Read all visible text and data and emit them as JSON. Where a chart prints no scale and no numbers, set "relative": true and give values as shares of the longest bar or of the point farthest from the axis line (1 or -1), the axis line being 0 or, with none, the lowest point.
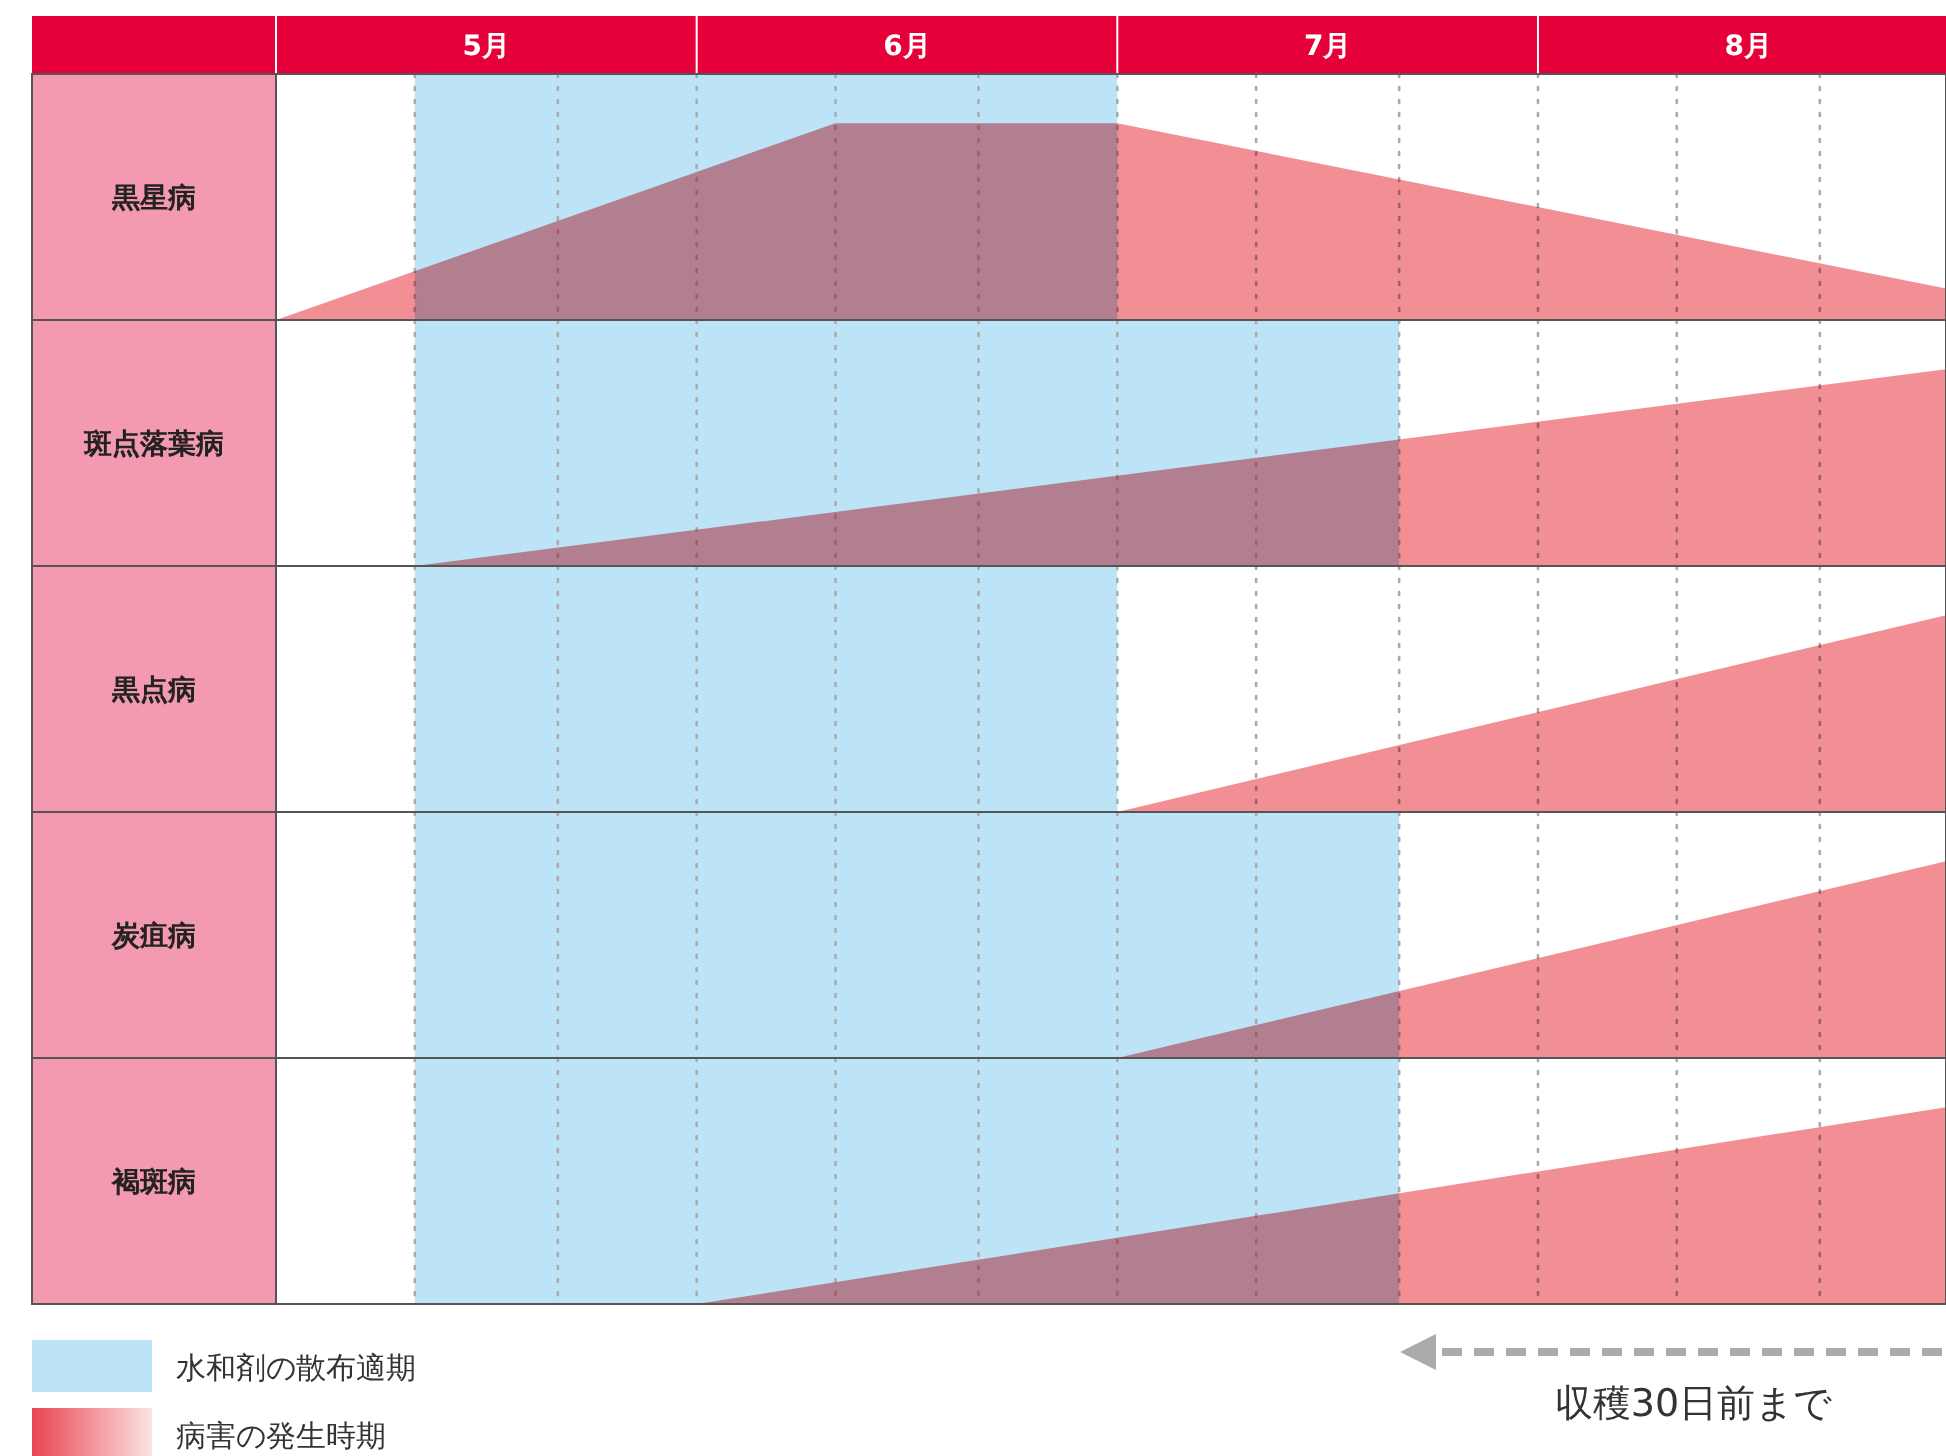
{
  "chart_data": [
    {
      "type": "area",
      "ylabel": "黒星病",
      "relative": true,
      "tick_labels": "x",
      "x": [
        5,
        6.33,
        7,
        8.97
      ],
      "xlim": [
        5,
        8.97
      ],
      "xticks": [
        {
          "value": 5.5,
          "label": "5月"
        },
        {
          "value": 6.5,
          "label": "6月"
        },
        {
          "value": 7.5,
          "label": "7月"
        },
        {
          "value": 8.5,
          "label": "8月"
        }
      ],
      "series": [
        {
          "color": "#e8454f",
          "values": [
            0,
            1,
            1,
            0.16
          ]
        }
      ],
      "bands": [
        {
          "axis": "x",
          "from": 5.33,
          "to": 7,
          "color": "#bde3f7"
        }
      ],
      "ref_lines": [
        {
          "axis": "x",
          "value": 5.33,
          "line_style": "dotted",
          "color": "#aaaaaa"
        },
        {
          "axis": "x",
          "value": 5.67,
          "line_style": "dotted",
          "color": "#aaaaaa"
        },
        {
          "axis": "x",
          "value": 6,
          "line_style": "dotted",
          "color": "#aaaaaa"
        },
        {
          "axis": "x",
          "value": 6.33,
          "line_style": "dotted",
          "color": "#aaaaaa"
        },
        {
          "axis": "x",
          "value": 6.67,
          "line_style": "dotted",
          "color": "#aaaaaa"
        },
        {
          "axis": "x",
          "value": 7,
          "line_style": "dotted",
          "color": "#aaaaaa"
        },
        {
          "axis": "x",
          "value": 7.33,
          "line_style": "dotted",
          "color": "#aaaaaa"
        },
        {
          "axis": "x",
          "value": 7.67,
          "line_style": "dotted",
          "color": "#aaaaaa"
        },
        {
          "axis": "x",
          "value": 8,
          "line_style": "dotted",
          "color": "#aaaaaa"
        },
        {
          "axis": "x",
          "value": 8.33,
          "line_style": "dotted",
          "color": "#aaaaaa"
        },
        {
          "axis": "x",
          "value": 8.67,
          "line_style": "dotted",
          "color": "#aaaaaa"
        }
      ]
    },
    {
      "type": "area",
      "ylabel": "斑点落葉病",
      "relative": true,
      "tick_labels": false,
      "x": [
        5.33,
        8.97
      ],
      "xlim": [
        5,
        8.97
      ],
      "series": [
        {
          "color": "#e8454f",
          "values": [
            0,
            1
          ]
        }
      ],
      "bands": [
        {
          "axis": "x",
          "from": 5.33,
          "to": 7.67,
          "color": "#bde3f7"
        }
      ],
      "ref_lines": [
        {
          "axis": "x",
          "value": 5.33,
          "line_style": "dotted",
          "color": "#aaaaaa"
        },
        {
          "axis": "x",
          "value": 5.67,
          "line_style": "dotted",
          "color": "#aaaaaa"
        },
        {
          "axis": "x",
          "value": 6,
          "line_style": "dotted",
          "color": "#aaaaaa"
        },
        {
          "axis": "x",
          "value": 6.33,
          "line_style": "dotted",
          "color": "#aaaaaa"
        },
        {
          "axis": "x",
          "value": 6.67,
          "line_style": "dotted",
          "color": "#aaaaaa"
        },
        {
          "axis": "x",
          "value": 7,
          "line_style": "dotted",
          "color": "#aaaaaa"
        },
        {
          "axis": "x",
          "value": 7.33,
          "line_style": "dotted",
          "color": "#aaaaaa"
        },
        {
          "axis": "x",
          "value": 7.67,
          "line_style": "dotted",
          "color": "#aaaaaa"
        },
        {
          "axis": "x",
          "value": 8,
          "line_style": "dotted",
          "color": "#aaaaaa"
        },
        {
          "axis": "x",
          "value": 8.33,
          "line_style": "dotted",
          "color": "#aaaaaa"
        },
        {
          "axis": "x",
          "value": 8.67,
          "line_style": "dotted",
          "color": "#aaaaaa"
        }
      ]
    },
    {
      "type": "area",
      "ylabel": "黒点病",
      "relative": true,
      "tick_labels": false,
      "x": [
        7,
        8.97
      ],
      "xlim": [
        5,
        8.97
      ],
      "series": [
        {
          "color": "#e8454f",
          "values": [
            0,
            1
          ]
        }
      ],
      "bands": [
        {
          "axis": "x",
          "from": 5.33,
          "to": 7,
          "color": "#bde3f7"
        }
      ],
      "ref_lines": [
        {
          "axis": "x",
          "value": 5.33,
          "line_style": "dotted",
          "color": "#aaaaaa"
        },
        {
          "axis": "x",
          "value": 5.67,
          "line_style": "dotted",
          "color": "#aaaaaa"
        },
        {
          "axis": "x",
          "value": 6,
          "line_style": "dotted",
          "color": "#aaaaaa"
        },
        {
          "axis": "x",
          "value": 6.33,
          "line_style": "dotted",
          "color": "#aaaaaa"
        },
        {
          "axis": "x",
          "value": 6.67,
          "line_style": "dotted",
          "color": "#aaaaaa"
        },
        {
          "axis": "x",
          "value": 7,
          "line_style": "dotted",
          "color": "#aaaaaa"
        },
        {
          "axis": "x",
          "value": 7.33,
          "line_style": "dotted",
          "color": "#aaaaaa"
        },
        {
          "axis": "x",
          "value": 7.67,
          "line_style": "dotted",
          "color": "#aaaaaa"
        },
        {
          "axis": "x",
          "value": 8,
          "line_style": "dotted",
          "color": "#aaaaaa"
        },
        {
          "axis": "x",
          "value": 8.33,
          "line_style": "dotted",
          "color": "#aaaaaa"
        },
        {
          "axis": "x",
          "value": 8.67,
          "line_style": "dotted",
          "color": "#aaaaaa"
        }
      ]
    },
    {
      "type": "area",
      "ylabel": "炭疽病",
      "relative": true,
      "tick_labels": false,
      "x": [
        7,
        8.97
      ],
      "xlim": [
        5,
        8.97
      ],
      "series": [
        {
          "color": "#e8454f",
          "values": [
            0,
            1
          ]
        }
      ],
      "bands": [
        {
          "axis": "x",
          "from": 5.33,
          "to": 7.67,
          "color": "#bde3f7"
        }
      ],
      "ref_lines": [
        {
          "axis": "x",
          "value": 5.33,
          "line_style": "dotted",
          "color": "#aaaaaa"
        },
        {
          "axis": "x",
          "value": 5.67,
          "line_style": "dotted",
          "color": "#aaaaaa"
        },
        {
          "axis": "x",
          "value": 6,
          "line_style": "dotted",
          "color": "#aaaaaa"
        },
        {
          "axis": "x",
          "value": 6.33,
          "line_style": "dotted",
          "color": "#aaaaaa"
        },
        {
          "axis": "x",
          "value": 6.67,
          "line_style": "dotted",
          "color": "#aaaaaa"
        },
        {
          "axis": "x",
          "value": 7,
          "line_style": "dotted",
          "color": "#aaaaaa"
        },
        {
          "axis": "x",
          "value": 7.33,
          "line_style": "dotted",
          "color": "#aaaaaa"
        },
        {
          "axis": "x",
          "value": 7.67,
          "line_style": "dotted",
          "color": "#aaaaaa"
        },
        {
          "axis": "x",
          "value": 8,
          "line_style": "dotted",
          "color": "#aaaaaa"
        },
        {
          "axis": "x",
          "value": 8.33,
          "line_style": "dotted",
          "color": "#aaaaaa"
        },
        {
          "axis": "x",
          "value": 8.67,
          "line_style": "dotted",
          "color": "#aaaaaa"
        }
      ]
    },
    {
      "type": "area",
      "ylabel": "褐斑病",
      "relative": true,
      "tick_labels": false,
      "x": [
        6,
        8.97
      ],
      "xlim": [
        5,
        8.97
      ],
      "legend": "bottom",
      "series": [
        {
          "name": "病害の発生時期",
          "color": "#e8454f",
          "values": [
            0,
            1
          ]
        }
      ],
      "bands": [
        {
          "axis": "x",
          "from": 5.33,
          "to": 7.67,
          "color": "#bde3f7",
          "label": "水和剤の散布適期"
        }
      ],
      "annotations": [
        "収穫30日前まで"
      ],
      "ref_lines": [
        {
          "axis": "x",
          "value": 5.33,
          "line_style": "dotted",
          "color": "#aaaaaa"
        },
        {
          "axis": "x",
          "value": 5.67,
          "line_style": "dotted",
          "color": "#aaaaaa"
        },
        {
          "axis": "x",
          "value": 6,
          "line_style": "dotted",
          "color": "#aaaaaa"
        },
        {
          "axis": "x",
          "value": 6.33,
          "line_style": "dotted",
          "color": "#aaaaaa"
        },
        {
          "axis": "x",
          "value": 6.67,
          "line_style": "dotted",
          "color": "#aaaaaa"
        },
        {
          "axis": "x",
          "value": 7,
          "line_style": "dotted",
          "color": "#aaaaaa"
        },
        {
          "axis": "x",
          "value": 7.33,
          "line_style": "dotted",
          "color": "#aaaaaa"
        },
        {
          "axis": "x",
          "value": 7.67,
          "line_style": "dotted",
          "color": "#aaaaaa"
        },
        {
          "axis": "x",
          "value": 8,
          "line_style": "dotted",
          "color": "#aaaaaa"
        },
        {
          "axis": "x",
          "value": 8.33,
          "line_style": "dotted",
          "color": "#aaaaaa"
        },
        {
          "axis": "x",
          "value": 8.67,
          "line_style": "dotted",
          "color": "#aaaaaa"
        }
      ]
    }
  ]
}
